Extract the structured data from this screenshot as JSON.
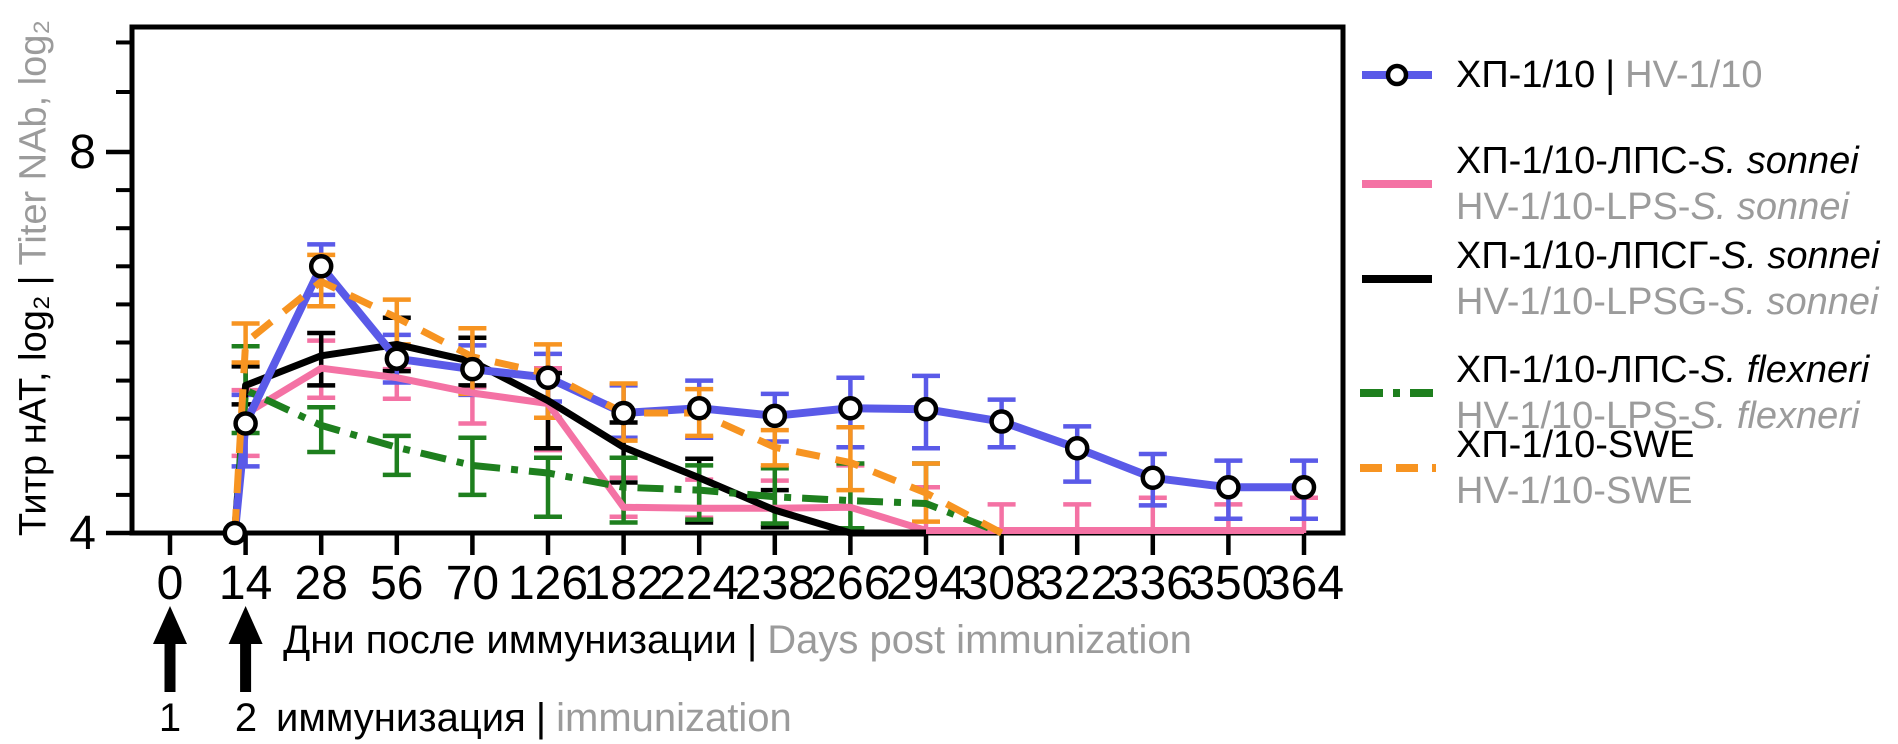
{
  "figure": {
    "background": "#ffffff",
    "text_color": "#000000",
    "secondary_text_color": "#9b9b9b",
    "axis_color": "#000000"
  },
  "y_axis": {
    "label_primary": "Титр нАТ, log₂",
    "label_divider": "|",
    "label_secondary": "Titer NAb, log₂",
    "labeled_ticks": [
      "8",
      "4"
    ],
    "labeled_tick_values": [
      8,
      4
    ],
    "minor_tick_values": [
      9.15,
      8.63,
      7.6,
      7.2,
      6.8,
      6.4,
      6.0,
      5.6,
      5.2,
      4.8,
      4.4
    ],
    "min": 4,
    "max": 9.3
  },
  "x_axis": {
    "label_primary": "Дни после иммунизации",
    "label_divider": "|",
    "label_secondary": "Days post immunization",
    "tick_labels": [
      "0",
      "14",
      "28",
      "56",
      "70",
      "126",
      "182",
      "224",
      "238",
      "266",
      "294",
      "308",
      "322",
      "336",
      "350",
      "364"
    ],
    "tick_days": [
      0,
      14,
      28,
      56,
      70,
      126,
      182,
      224,
      238,
      266,
      294,
      308,
      322,
      336,
      350,
      364
    ]
  },
  "chart_data": {
    "type": "line",
    "title": "",
    "xlabel": "Дни после иммунизации | Days post immunization",
    "ylabel": "Титр нАТ, log₂ | Titer NAb, log₂",
    "ylim": [
      4,
      9.3
    ],
    "grid": false,
    "legend_position": "right",
    "series": [
      {
        "name_ru": "ХП-1/10",
        "name_en": "HV-1/10",
        "color": "#5a5ae8",
        "line_style": "solid",
        "marker": "open-circle",
        "points": [
          {
            "day": 12,
            "v": 4.0
          },
          {
            "day": 14,
            "v": 5.15,
            "lo": 4.7,
            "hi": 5.45
          },
          {
            "day": 28,
            "v": 6.8,
            "lo": 6.5,
            "hi": 7.03
          },
          {
            "day": 56,
            "v": 5.83,
            "lo": 5.58,
            "hi": 6.08
          },
          {
            "day": 70,
            "v": 5.72,
            "lo": 5.45,
            "hi": 5.97
          },
          {
            "day": 126,
            "v": 5.63,
            "lo": 5.38,
            "hi": 5.88
          },
          {
            "day": 182,
            "v": 5.26,
            "lo": 5.0,
            "hi": 5.55
          },
          {
            "day": 224,
            "v": 5.31,
            "lo": 5.0,
            "hi": 5.6
          },
          {
            "day": 238,
            "v": 5.23,
            "lo": 4.96,
            "hi": 5.46
          },
          {
            "day": 266,
            "v": 5.31,
            "lo": 4.9,
            "hi": 5.63
          },
          {
            "day": 294,
            "v": 5.3,
            "lo": 4.89,
            "hi": 5.65
          },
          {
            "day": 308,
            "v": 5.17,
            "lo": 4.9,
            "hi": 5.4
          },
          {
            "day": 322,
            "v": 4.89,
            "lo": 4.54,
            "hi": 5.12
          },
          {
            "day": 336,
            "v": 4.58,
            "lo": 4.29,
            "hi": 4.83
          },
          {
            "day": 350,
            "v": 4.48,
            "lo": 4.15,
            "hi": 4.76
          },
          {
            "day": 364,
            "v": 4.48,
            "lo": 4.15,
            "hi": 4.76
          }
        ]
      },
      {
        "name_ru": "ХП-1/10-ЛПС-S. sonnei",
        "name_en": "HV-1/10-LPS-S. sonnei",
        "color": "#f472a4",
        "line_style": "solid",
        "marker": "none",
        "points": [
          {
            "day": 12,
            "v": 4.0
          },
          {
            "day": 14,
            "v": 5.25,
            "lo": 4.81,
            "hi": 5.5
          },
          {
            "day": 28,
            "v": 5.73,
            "lo": 5.42,
            "hi": 6.02
          },
          {
            "day": 56,
            "v": 5.63,
            "lo": 5.41,
            "hi": 5.72
          },
          {
            "day": 70,
            "v": 5.47,
            "lo": 5.15,
            "hi": 5.53
          },
          {
            "day": 126,
            "v": 5.36,
            "lo": 4.87,
            "hi": 5.73
          },
          {
            "day": 182,
            "v": 4.27,
            "lo": 4.17,
            "hi": 4.58
          },
          {
            "day": 224,
            "v": 4.26,
            "lo": 4.16,
            "hi": 4.56
          },
          {
            "day": 238,
            "v": 4.26,
            "hi": 4.55
          },
          {
            "day": 266,
            "v": 4.27,
            "hi": 4.71
          },
          {
            "day": 294,
            "v": 4.0,
            "hi": 4.48
          },
          {
            "day": 308,
            "v": 4.0,
            "hi": 4.3
          },
          {
            "day": 322,
            "v": 4.0,
            "hi": 4.3
          },
          {
            "day": 336,
            "v": 4.0,
            "hi": 4.37
          },
          {
            "day": 350,
            "v": 4.0,
            "hi": 4.3
          },
          {
            "day": 364,
            "v": 4.0,
            "hi": 4.37
          }
        ]
      },
      {
        "name_ru": "ХП-1/10-ЛПСГ-S. sonnei",
        "name_en": "HV-1/10-LPSG-S. sonnei",
        "color": "#000000",
        "line_style": "solid",
        "marker": "none",
        "points": [
          {
            "day": 12,
            "v": 4.0
          },
          {
            "day": 14,
            "v": 5.55,
            "lo": 5.35,
            "hi": 5.75
          },
          {
            "day": 28,
            "v": 5.86,
            "lo": 5.55,
            "hi": 6.1
          },
          {
            "day": 56,
            "v": 5.98,
            "lo": 5.7,
            "hi": 6.26
          },
          {
            "day": 70,
            "v": 5.8,
            "lo": 5.55,
            "hi": 6.05
          },
          {
            "day": 126,
            "v": 5.39,
            "lo": 4.89,
            "hi": 5.68
          },
          {
            "day": 182,
            "v": 4.9,
            "lo": 4.53,
            "hi": 5.16
          },
          {
            "day": 224,
            "v": 4.58,
            "lo": 4.11,
            "hi": 4.78
          },
          {
            "day": 238,
            "v": 4.24,
            "lo": 4.06,
            "hi": 4.45
          },
          {
            "day": 266,
            "v": 4.0
          },
          {
            "day": 294,
            "v": 4.0
          }
        ]
      },
      {
        "name_ru": "ХП-1/10-ЛПС-S. flexneri",
        "name_en": "HV-1/10-LPS-S. flexneri",
        "color": "#1e7f1e",
        "line_style": "dashdot",
        "marker": "none",
        "points": [
          {
            "day": 12,
            "v": 4.0
          },
          {
            "day": 14,
            "v": 5.5,
            "lo": 5.05,
            "hi": 5.96
          },
          {
            "day": 28,
            "v": 5.13,
            "lo": 4.85,
            "hi": 5.32
          },
          {
            "day": 56,
            "v": 4.9,
            "lo": 4.61,
            "hi": 5.02
          },
          {
            "day": 70,
            "v": 4.71,
            "lo": 4.4,
            "hi": 5.0
          },
          {
            "day": 126,
            "v": 4.63,
            "lo": 4.17,
            "hi": 4.79
          },
          {
            "day": 182,
            "v": 4.48,
            "lo": 4.11,
            "hi": 4.79
          },
          {
            "day": 224,
            "v": 4.45,
            "lo": 4.14,
            "hi": 4.71
          },
          {
            "day": 238,
            "v": 4.38,
            "lo": 4.1,
            "hi": 4.68
          },
          {
            "day": 266,
            "v": 4.34,
            "lo": 4.05,
            "hi": 4.73
          },
          {
            "day": 294,
            "v": 4.31,
            "hi": 4.73
          },
          {
            "day": 308,
            "v": 4.0
          }
        ]
      },
      {
        "name_ru": "ХП-1/10-SWE",
        "name_en": "HV-1/10-SWE",
        "color": "#f79421",
        "line_style": "dashed",
        "marker": "none",
        "points": [
          {
            "day": 12,
            "v": 4.0
          },
          {
            "day": 14,
            "v": 6.0,
            "lo": 5.79,
            "hi": 6.2
          },
          {
            "day": 28,
            "v": 6.64,
            "lo": 6.38,
            "hi": 6.92
          },
          {
            "day": 56,
            "v": 6.26,
            "lo": 5.98,
            "hi": 6.45
          },
          {
            "day": 70,
            "v": 5.85,
            "lo": 5.46,
            "hi": 6.15
          },
          {
            "day": 126,
            "v": 5.67,
            "lo": 5.21,
            "hi": 5.98
          },
          {
            "day": 182,
            "v": 5.26,
            "lo": 4.97,
            "hi": 5.57
          },
          {
            "day": 224,
            "v": 5.26,
            "lo": 5.02,
            "hi": 5.51
          },
          {
            "day": 238,
            "v": 4.9,
            "lo": 4.71,
            "hi": 5.08
          },
          {
            "day": 266,
            "v": 4.74,
            "lo": 4.45,
            "hi": 5.11
          },
          {
            "day": 294,
            "v": 4.42,
            "lo": 4.12,
            "hi": 4.73
          },
          {
            "day": 308,
            "v": 4.0
          }
        ]
      }
    ]
  },
  "legend": {
    "entries": [
      {
        "ru_prefix": "ХП-1/10",
        "divider": "|",
        "en_prefix": "HV-1/10"
      },
      {
        "ru_prefix": "ХП-1/10-ЛПС-",
        "ru_italic": "S. sonnei",
        "en_prefix": "HV-1/10-LPS-",
        "en_italic": "S. sonnei"
      },
      {
        "ru_prefix": "ХП-1/10-ЛПСГ-",
        "ru_italic": "S. sonnei",
        "en_prefix": "HV-1/10-LPSG-",
        "en_italic": "S. sonnei"
      },
      {
        "ru_prefix": "ХП-1/10-ЛПС-",
        "ru_italic": "S. flexneri",
        "en_prefix": "HV-1/10-LPS-",
        "en_italic": "S. flexneri"
      },
      {
        "ru_prefix": "ХП-1/10-SWE",
        "en_prefix": "HV-1/10-SWE"
      }
    ]
  },
  "annotations": {
    "arrow_1": {
      "day": 0,
      "label": "1"
    },
    "arrow_2": {
      "day": 14,
      "label": "2"
    },
    "caption_primary": "иммунизация",
    "caption_divider": "|",
    "caption_secondary": "immunization"
  }
}
